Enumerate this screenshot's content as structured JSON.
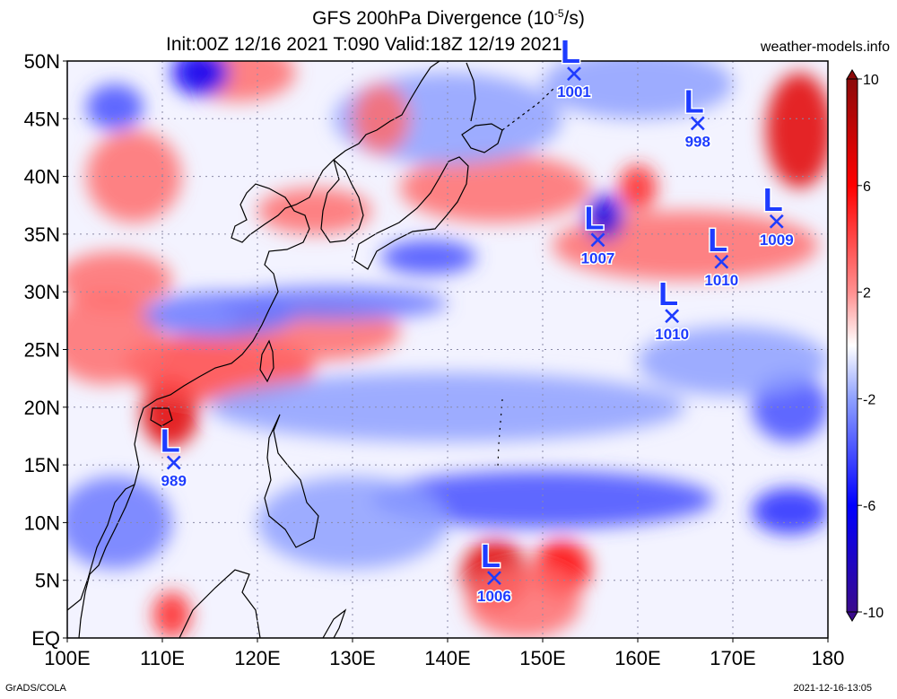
{
  "header": {
    "title_main": "GFS 200hPa Divergence (10",
    "title_exp": "-5",
    "title_end": "/s)",
    "subtitle": "Init:00Z 12/16 2021 T:090 Valid:18Z 12/19 2021",
    "site": "weather-models.info"
  },
  "footer": {
    "credit": "GrADS/COLA",
    "timestamp": "2021-12-16-13:05"
  },
  "map": {
    "lon_range": [
      100,
      180
    ],
    "lat_range": [
      0,
      50
    ],
    "lon_ticks": [
      {
        "v": 100,
        "label": "100E"
      },
      {
        "v": 110,
        "label": "110E"
      },
      {
        "v": 120,
        "label": "120E"
      },
      {
        "v": 130,
        "label": "130E"
      },
      {
        "v": 140,
        "label": "140E"
      },
      {
        "v": 150,
        "label": "150E"
      },
      {
        "v": 160,
        "label": "160E"
      },
      {
        "v": 170,
        "label": "170E"
      },
      {
        "v": 180,
        "label": "180"
      }
    ],
    "lat_ticks": [
      {
        "v": 0,
        "label": "EQ"
      },
      {
        "v": 5,
        "label": "5N"
      },
      {
        "v": 10,
        "label": "10N"
      },
      {
        "v": 15,
        "label": "15N"
      },
      {
        "v": 20,
        "label": "20N"
      },
      {
        "v": 25,
        "label": "25N"
      },
      {
        "v": 30,
        "label": "30N"
      },
      {
        "v": 35,
        "label": "35N"
      },
      {
        "v": 40,
        "label": "40N"
      },
      {
        "v": 45,
        "label": "45N"
      },
      {
        "v": 50,
        "label": "50N"
      }
    ],
    "grid": true,
    "lows": [
      {
        "label": "L",
        "pressure": "1001",
        "lon": 153.3,
        "lat": 48.9
      },
      {
        "label": "L",
        "pressure": "998",
        "lon": 166.3,
        "lat": 44.6
      },
      {
        "label": "L",
        "pressure": "1009",
        "lon": 174.6,
        "lat": 36.1
      },
      {
        "label": "L",
        "pressure": "1007",
        "lon": 155.8,
        "lat": 34.5
      },
      {
        "label": "L",
        "pressure": "1010",
        "lon": 168.8,
        "lat": 32.6
      },
      {
        "label": "L",
        "pressure": "1010",
        "lon": 163.6,
        "lat": 27.9
      },
      {
        "label": "L",
        "pressure": "989",
        "lon": 111.2,
        "lat": 15.2
      },
      {
        "label": "L",
        "pressure": "1006",
        "lon": 144.9,
        "lat": 5.2
      }
    ],
    "field_features": [
      {
        "lon": 110.8,
        "lat": 19.5,
        "value": 7,
        "rx": 3.0,
        "ry": 3.0
      },
      {
        "lon": 116,
        "lat": 23.5,
        "value": 4,
        "rx": 10,
        "ry": 3.0
      },
      {
        "lon": 126,
        "lat": 26.5,
        "value": 3,
        "rx": 9,
        "ry": 2.5
      },
      {
        "lon": 104,
        "lat": 26,
        "value": 3,
        "rx": 6,
        "ry": 4
      },
      {
        "lon": 105,
        "lat": 31,
        "value": 3,
        "rx": 6,
        "ry": 2.5
      },
      {
        "lon": 145,
        "lat": 5.5,
        "value": 7,
        "rx": 3.5,
        "ry": 3
      },
      {
        "lon": 152,
        "lat": 6,
        "value": 6,
        "rx": 3,
        "ry": 2.5
      },
      {
        "lon": 148,
        "lat": 3,
        "value": 3,
        "rx": 6,
        "ry": 3
      },
      {
        "lon": 177,
        "lat": 44,
        "value": 7,
        "rx": 3.5,
        "ry": 5
      },
      {
        "lon": 160,
        "lat": 39,
        "value": 5,
        "rx": 2,
        "ry": 2
      },
      {
        "lon": 165,
        "lat": 34,
        "value": 3,
        "rx": 14,
        "ry": 3
      },
      {
        "lon": 145,
        "lat": 39,
        "value": 3,
        "rx": 10,
        "ry": 3
      },
      {
        "lon": 118,
        "lat": 49,
        "value": 3,
        "rx": 6,
        "ry": 2.5
      },
      {
        "lon": 126,
        "lat": 37,
        "value": 3,
        "rx": 6,
        "ry": 2
      },
      {
        "lon": 111,
        "lat": 2,
        "value": 5,
        "rx": 2,
        "ry": 2
      },
      {
        "lon": 156.5,
        "lat": 36.5,
        "value": -7,
        "rx": 2,
        "ry": 2
      },
      {
        "lon": 114,
        "lat": 49,
        "value": -6,
        "rx": 3,
        "ry": 2
      },
      {
        "lon": 105,
        "lat": 46,
        "value": -4,
        "rx": 3,
        "ry": 2
      },
      {
        "lon": 138,
        "lat": 33,
        "value": -4,
        "rx": 5,
        "ry": 1.5
      },
      {
        "lon": 128,
        "lat": 29,
        "value": -3,
        "rx": 12,
        "ry": 1.5
      },
      {
        "lon": 150,
        "lat": 12,
        "value": -4,
        "rx": 18,
        "ry": 2.5
      },
      {
        "lon": 140,
        "lat": 20,
        "value": -2,
        "rx": 25,
        "ry": 3
      },
      {
        "lon": 176,
        "lat": 20,
        "value": -4,
        "rx": 4,
        "ry": 3
      },
      {
        "lon": 176,
        "lat": 11,
        "value": -5,
        "rx": 4,
        "ry": 2
      },
      {
        "lon": 116,
        "lat": 28,
        "value": -3,
        "rx": 8,
        "ry": 2
      },
      {
        "lon": 140,
        "lat": 45,
        "value": -2,
        "rx": 12,
        "ry": 4
      },
      {
        "lon": 160,
        "lat": 48,
        "value": -2,
        "rx": 10,
        "ry": 3
      },
      {
        "lon": 105,
        "lat": 10,
        "value": -3,
        "rx": 6,
        "ry": 4
      },
      {
        "lon": 130,
        "lat": 10,
        "value": -2,
        "rx": 10,
        "ry": 4
      },
      {
        "lon": 170,
        "lat": 24,
        "value": -2,
        "rx": 10,
        "ry": 3
      },
      {
        "lon": 107,
        "lat": 40,
        "value": 3,
        "rx": 5,
        "ry": 4
      },
      {
        "lon": 133,
        "lat": 45,
        "value": 3,
        "rx": 3,
        "ry": 3
      }
    ]
  },
  "colorbar": {
    "range": [
      -10,
      10
    ],
    "ticks": [
      {
        "v": 10,
        "label": "10"
      },
      {
        "v": 6,
        "label": "6"
      },
      {
        "v": 2,
        "label": "2"
      },
      {
        "v": -2,
        "label": "-2"
      },
      {
        "v": -6,
        "label": "-6"
      },
      {
        "v": -10,
        "label": "-10"
      }
    ],
    "colors": {
      "min": "#3a0a8c",
      "strong_neg": "#0000ff",
      "neg": "#8ea0ff",
      "zero": "#ffffff",
      "pos": "#ff9090",
      "strong_pos": "#ff0000",
      "max": "#8c0a0a"
    }
  }
}
